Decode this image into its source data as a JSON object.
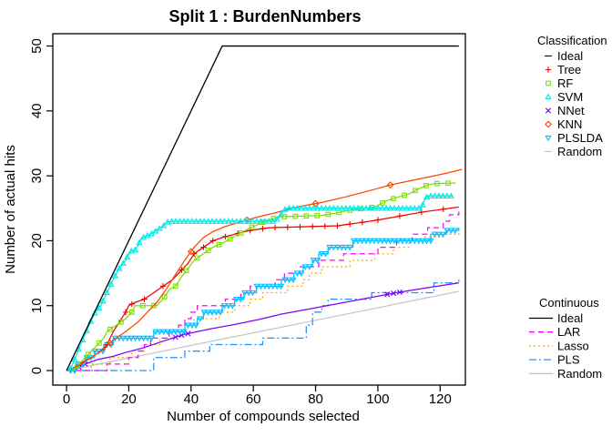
{
  "chart_data": {
    "type": "line",
    "title": "Split 1 : BurdenNumbers",
    "xlabel": "Number of compounds selected",
    "ylabel": "Number of actual hits",
    "xlim": [
      -4.4,
      128.1
    ],
    "ylim": [
      -2.24,
      51.9
    ],
    "x_ticks": [
      0,
      20,
      40,
      60,
      80,
      100,
      120
    ],
    "y_ticks": [
      0,
      10,
      20,
      30,
      40,
      50
    ],
    "grid": false,
    "series": [
      {
        "name": "Random",
        "group": "both",
        "color": "#C6C6C6",
        "dash": "",
        "points": [
          [
            0,
            0
          ],
          [
            126,
            12.2
          ]
        ]
      },
      {
        "name": "PLS",
        "group": "continuous",
        "color": "#1E90FF",
        "dash": "8,3,2,3",
        "step": true,
        "points": [
          [
            0,
            0
          ],
          [
            28,
            2
          ],
          [
            38,
            3
          ],
          [
            46,
            4
          ],
          [
            63,
            5
          ],
          [
            77,
            7
          ],
          [
            79,
            9
          ],
          [
            82,
            10
          ],
          [
            84,
            11
          ],
          [
            98,
            12
          ],
          [
            118,
            13.5
          ],
          [
            126,
            14
          ]
        ]
      },
      {
        "name": "Lasso",
        "group": "continuous",
        "color": "#FFA500",
        "dash": "2,3",
        "step": true,
        "points": [
          [
            0,
            0
          ],
          [
            8,
            1
          ],
          [
            14,
            2
          ],
          [
            21,
            3
          ],
          [
            25,
            4
          ],
          [
            30,
            5
          ],
          [
            33,
            6
          ],
          [
            37,
            7
          ],
          [
            41,
            8
          ],
          [
            49,
            9
          ],
          [
            54,
            10
          ],
          [
            59,
            11
          ],
          [
            63,
            12
          ],
          [
            71,
            13
          ],
          [
            76,
            14
          ],
          [
            78,
            15
          ],
          [
            82,
            16
          ],
          [
            91,
            17
          ],
          [
            99,
            18
          ],
          [
            105,
            19
          ],
          [
            110,
            20
          ],
          [
            115,
            20.6
          ],
          [
            121,
            21
          ],
          [
            126,
            21.8
          ]
        ]
      },
      {
        "name": "LAR",
        "group": "continuous",
        "color": "#FF00FF",
        "dash": "6,4",
        "step": true,
        "points": [
          [
            0,
            0
          ],
          [
            13,
            1
          ],
          [
            20,
            2
          ],
          [
            23,
            3
          ],
          [
            25,
            4
          ],
          [
            27,
            5
          ],
          [
            33,
            6
          ],
          [
            36,
            7
          ],
          [
            38,
            8
          ],
          [
            40,
            9
          ],
          [
            42,
            10
          ],
          [
            51,
            11
          ],
          [
            56,
            12
          ],
          [
            59,
            13
          ],
          [
            67,
            14
          ],
          [
            70,
            15
          ],
          [
            75,
            16
          ],
          [
            81,
            17
          ],
          [
            89,
            18
          ],
          [
            100,
            19
          ],
          [
            106,
            20
          ],
          [
            111,
            21
          ],
          [
            116,
            22
          ],
          [
            121,
            23
          ],
          [
            123,
            24
          ],
          [
            126,
            24.5
          ]
        ]
      },
      {
        "name": "NNet",
        "group": "classification",
        "color": "#8000FF",
        "dash": "",
        "marker": {
          "shape": "x",
          "at": [
            2,
            4,
            6,
            35,
            37,
            39,
            103,
            105,
            107
          ]
        },
        "points": [
          [
            0,
            0
          ],
          [
            3,
            0.3
          ],
          [
            6,
            1
          ],
          [
            10,
            1.7
          ],
          [
            15,
            2.2
          ],
          [
            19,
            2.8
          ],
          [
            24,
            3.4
          ],
          [
            29,
            4.2
          ],
          [
            34,
            5
          ],
          [
            38,
            5.6
          ],
          [
            46,
            6.4
          ],
          [
            54,
            7.1
          ],
          [
            62,
            7.9
          ],
          [
            69,
            8.7
          ],
          [
            77,
            9.4
          ],
          [
            87,
            10.3
          ],
          [
            96,
            11.1
          ],
          [
            106,
            12
          ],
          [
            115,
            12.7
          ],
          [
            126,
            13.5
          ]
        ]
      },
      {
        "name": "PLSLDA",
        "group": "classification",
        "color": "#00BFFF",
        "dash": "",
        "step": true,
        "marker": {
          "shape": "triangle-down",
          "every": 1.3
        },
        "points": [
          [
            0,
            0
          ],
          [
            3,
            1
          ],
          [
            6,
            2
          ],
          [
            9,
            3
          ],
          [
            12,
            4
          ],
          [
            15,
            5
          ],
          [
            28,
            6
          ],
          [
            38,
            7
          ],
          [
            42,
            8
          ],
          [
            44,
            9
          ],
          [
            50,
            10
          ],
          [
            54,
            11
          ],
          [
            57,
            12
          ],
          [
            61,
            13
          ],
          [
            69,
            14
          ],
          [
            73,
            15
          ],
          [
            76,
            16
          ],
          [
            79,
            17
          ],
          [
            81,
            18
          ],
          [
            84,
            19
          ],
          [
            92,
            20
          ],
          [
            117,
            21
          ],
          [
            122,
            21.6
          ],
          [
            126,
            22
          ]
        ]
      },
      {
        "name": "Tree",
        "group": "classification",
        "color": "#EE0000",
        "dash": "",
        "marker": {
          "shape": "plus",
          "at": [
            13,
            19,
            21,
            25,
            31,
            37,
            41,
            44,
            47,
            51,
            55,
            59,
            63,
            67,
            71,
            75,
            79,
            83,
            87,
            91,
            95,
            100,
            107,
            114,
            121
          ]
        },
        "points": [
          [
            0,
            0
          ],
          [
            2,
            0
          ],
          [
            4,
            1
          ],
          [
            8,
            2
          ],
          [
            11,
            3
          ],
          [
            13,
            4
          ],
          [
            15,
            6
          ],
          [
            17,
            7.5
          ],
          [
            19,
            9
          ],
          [
            20,
            10
          ],
          [
            22,
            10.5
          ],
          [
            25,
            11
          ],
          [
            28,
            12
          ],
          [
            31,
            13
          ],
          [
            34,
            14
          ],
          [
            37,
            15.5
          ],
          [
            39,
            16.5
          ],
          [
            41,
            18
          ],
          [
            44,
            19
          ],
          [
            47,
            20
          ],
          [
            50,
            20.5
          ],
          [
            54,
            21
          ],
          [
            58,
            21.5
          ],
          [
            62,
            21.8
          ],
          [
            65,
            22
          ],
          [
            87,
            22.3
          ],
          [
            93,
            22.7
          ],
          [
            100,
            23.2
          ],
          [
            107,
            23.8
          ],
          [
            114,
            24.4
          ],
          [
            126,
            25.2
          ]
        ]
      },
      {
        "name": "RF",
        "group": "classification",
        "color": "#7CDF00",
        "dash": "",
        "marker": {
          "shape": "square",
          "every": 3.5
        },
        "points": [
          [
            0,
            0
          ],
          [
            2,
            0
          ],
          [
            4,
            1
          ],
          [
            6,
            2
          ],
          [
            8,
            3
          ],
          [
            10,
            4
          ],
          [
            12,
            5
          ],
          [
            13,
            6
          ],
          [
            15,
            6.7
          ],
          [
            17,
            7.3
          ],
          [
            19,
            8
          ],
          [
            21,
            9
          ],
          [
            22,
            10
          ],
          [
            29,
            10
          ],
          [
            31,
            11
          ],
          [
            33,
            12.5
          ],
          [
            35,
            13
          ],
          [
            37,
            14.5
          ],
          [
            39,
            15.7
          ],
          [
            41,
            17
          ],
          [
            44,
            18
          ],
          [
            47,
            19
          ],
          [
            50,
            19.6
          ],
          [
            53,
            20.4
          ],
          [
            56,
            21.2
          ],
          [
            59,
            22
          ],
          [
            62,
            22.6
          ],
          [
            64,
            23.1
          ],
          [
            67,
            23.5
          ],
          [
            69,
            23.7
          ],
          [
            82,
            23.9
          ],
          [
            87,
            24.3
          ],
          [
            92,
            24.8
          ],
          [
            99,
            25.2
          ],
          [
            103,
            26.2
          ],
          [
            107,
            26.8
          ],
          [
            110,
            27.2
          ],
          [
            113,
            28
          ],
          [
            116,
            28.6
          ],
          [
            118,
            28.8
          ],
          [
            125,
            28.9
          ]
        ]
      },
      {
        "name": "KNN",
        "group": "classification",
        "color": "#FF4500",
        "dash": "",
        "marker": {
          "shape": "diamond",
          "at": [
            14,
            40,
            58,
            80,
            104
          ]
        },
        "points": [
          [
            0,
            0
          ],
          [
            4,
            0.8
          ],
          [
            8,
            2
          ],
          [
            12,
            3.3
          ],
          [
            15,
            4.7
          ],
          [
            19,
            6
          ],
          [
            23,
            7.5
          ],
          [
            26,
            9
          ],
          [
            29,
            10.5
          ],
          [
            32,
            12.5
          ],
          [
            35,
            14.8
          ],
          [
            38,
            17
          ],
          [
            41,
            19
          ],
          [
            44,
            20.5
          ],
          [
            47,
            21.4
          ],
          [
            51,
            22.2
          ],
          [
            56,
            22.9
          ],
          [
            61,
            23.6
          ],
          [
            67,
            24.3
          ],
          [
            74,
            25.2
          ],
          [
            82,
            25.9
          ],
          [
            90,
            26.8
          ],
          [
            98,
            27.8
          ],
          [
            104,
            28.6
          ],
          [
            110,
            29.2
          ],
          [
            117,
            29.9
          ],
          [
            122,
            30.4
          ],
          [
            127,
            31
          ]
        ]
      },
      {
        "name": "SVM",
        "group": "classification",
        "color": "#00E8E8",
        "dash": "",
        "marker": {
          "shape": "triangle-up",
          "every": 1.3
        },
        "points": [
          [
            0,
            0
          ],
          [
            1,
            0
          ],
          [
            2,
            1
          ],
          [
            3,
            2.2
          ],
          [
            4,
            3.4
          ],
          [
            5,
            4.5
          ],
          [
            6,
            5.6
          ],
          [
            7,
            6.7
          ],
          [
            8,
            7.8
          ],
          [
            9,
            8.8
          ],
          [
            10,
            9.4
          ],
          [
            11,
            10
          ],
          [
            12,
            11
          ],
          [
            13,
            12
          ],
          [
            14,
            13
          ],
          [
            15,
            14
          ],
          [
            16,
            15
          ],
          [
            17,
            15.8
          ],
          [
            18,
            16.4
          ],
          [
            19,
            17
          ],
          [
            20,
            18
          ],
          [
            21,
            18.5
          ],
          [
            22,
            18.5
          ],
          [
            23,
            19.3
          ],
          [
            24,
            20.3
          ],
          [
            25,
            20.6
          ],
          [
            27,
            21
          ],
          [
            29,
            21.6
          ],
          [
            31,
            22.2
          ],
          [
            32,
            22.8
          ],
          [
            34,
            23
          ],
          [
            67,
            23
          ],
          [
            68,
            23.5
          ],
          [
            70,
            24.8
          ],
          [
            71,
            25
          ],
          [
            114,
            25
          ],
          [
            115,
            26.3
          ],
          [
            116,
            26.9
          ],
          [
            124,
            26.9
          ]
        ]
      },
      {
        "name": "Ideal",
        "group": "both",
        "color": "#000000",
        "dash": "",
        "points": [
          [
            0,
            0
          ],
          [
            50,
            50
          ],
          [
            126,
            50
          ]
        ]
      }
    ],
    "legends": [
      {
        "title": "Classification",
        "items": [
          {
            "label": "Ideal",
            "color": "#000000",
            "marker": "dash"
          },
          {
            "label": "Tree",
            "color": "#FF0000",
            "marker": "plus"
          },
          {
            "label": "RF",
            "color": "#7CDF00",
            "marker": "square"
          },
          {
            "label": "SVM",
            "color": "#00E8E8",
            "marker": "triangle-up"
          },
          {
            "label": "NNet",
            "color": "#8000FF",
            "marker": "x"
          },
          {
            "label": "KNN",
            "color": "#FF4500",
            "marker": "diamond"
          },
          {
            "label": "PLSLDA",
            "color": "#00BFFF",
            "marker": "triangle-down"
          },
          {
            "label": "Random",
            "color": "#C6C6C6",
            "marker": "dash"
          }
        ]
      },
      {
        "title": "Continuous",
        "items": [
          {
            "label": "Ideal",
            "color": "#000000",
            "dash": ""
          },
          {
            "label": "LAR",
            "color": "#FF00FF",
            "dash": "6,4"
          },
          {
            "label": "Lasso",
            "color": "#FFA500",
            "dash": "2,3"
          },
          {
            "label": "PLS",
            "color": "#1E90FF",
            "dash": "8,3,2,3"
          },
          {
            "label": "Random",
            "color": "#C6C6C6",
            "dash": ""
          }
        ]
      }
    ]
  }
}
